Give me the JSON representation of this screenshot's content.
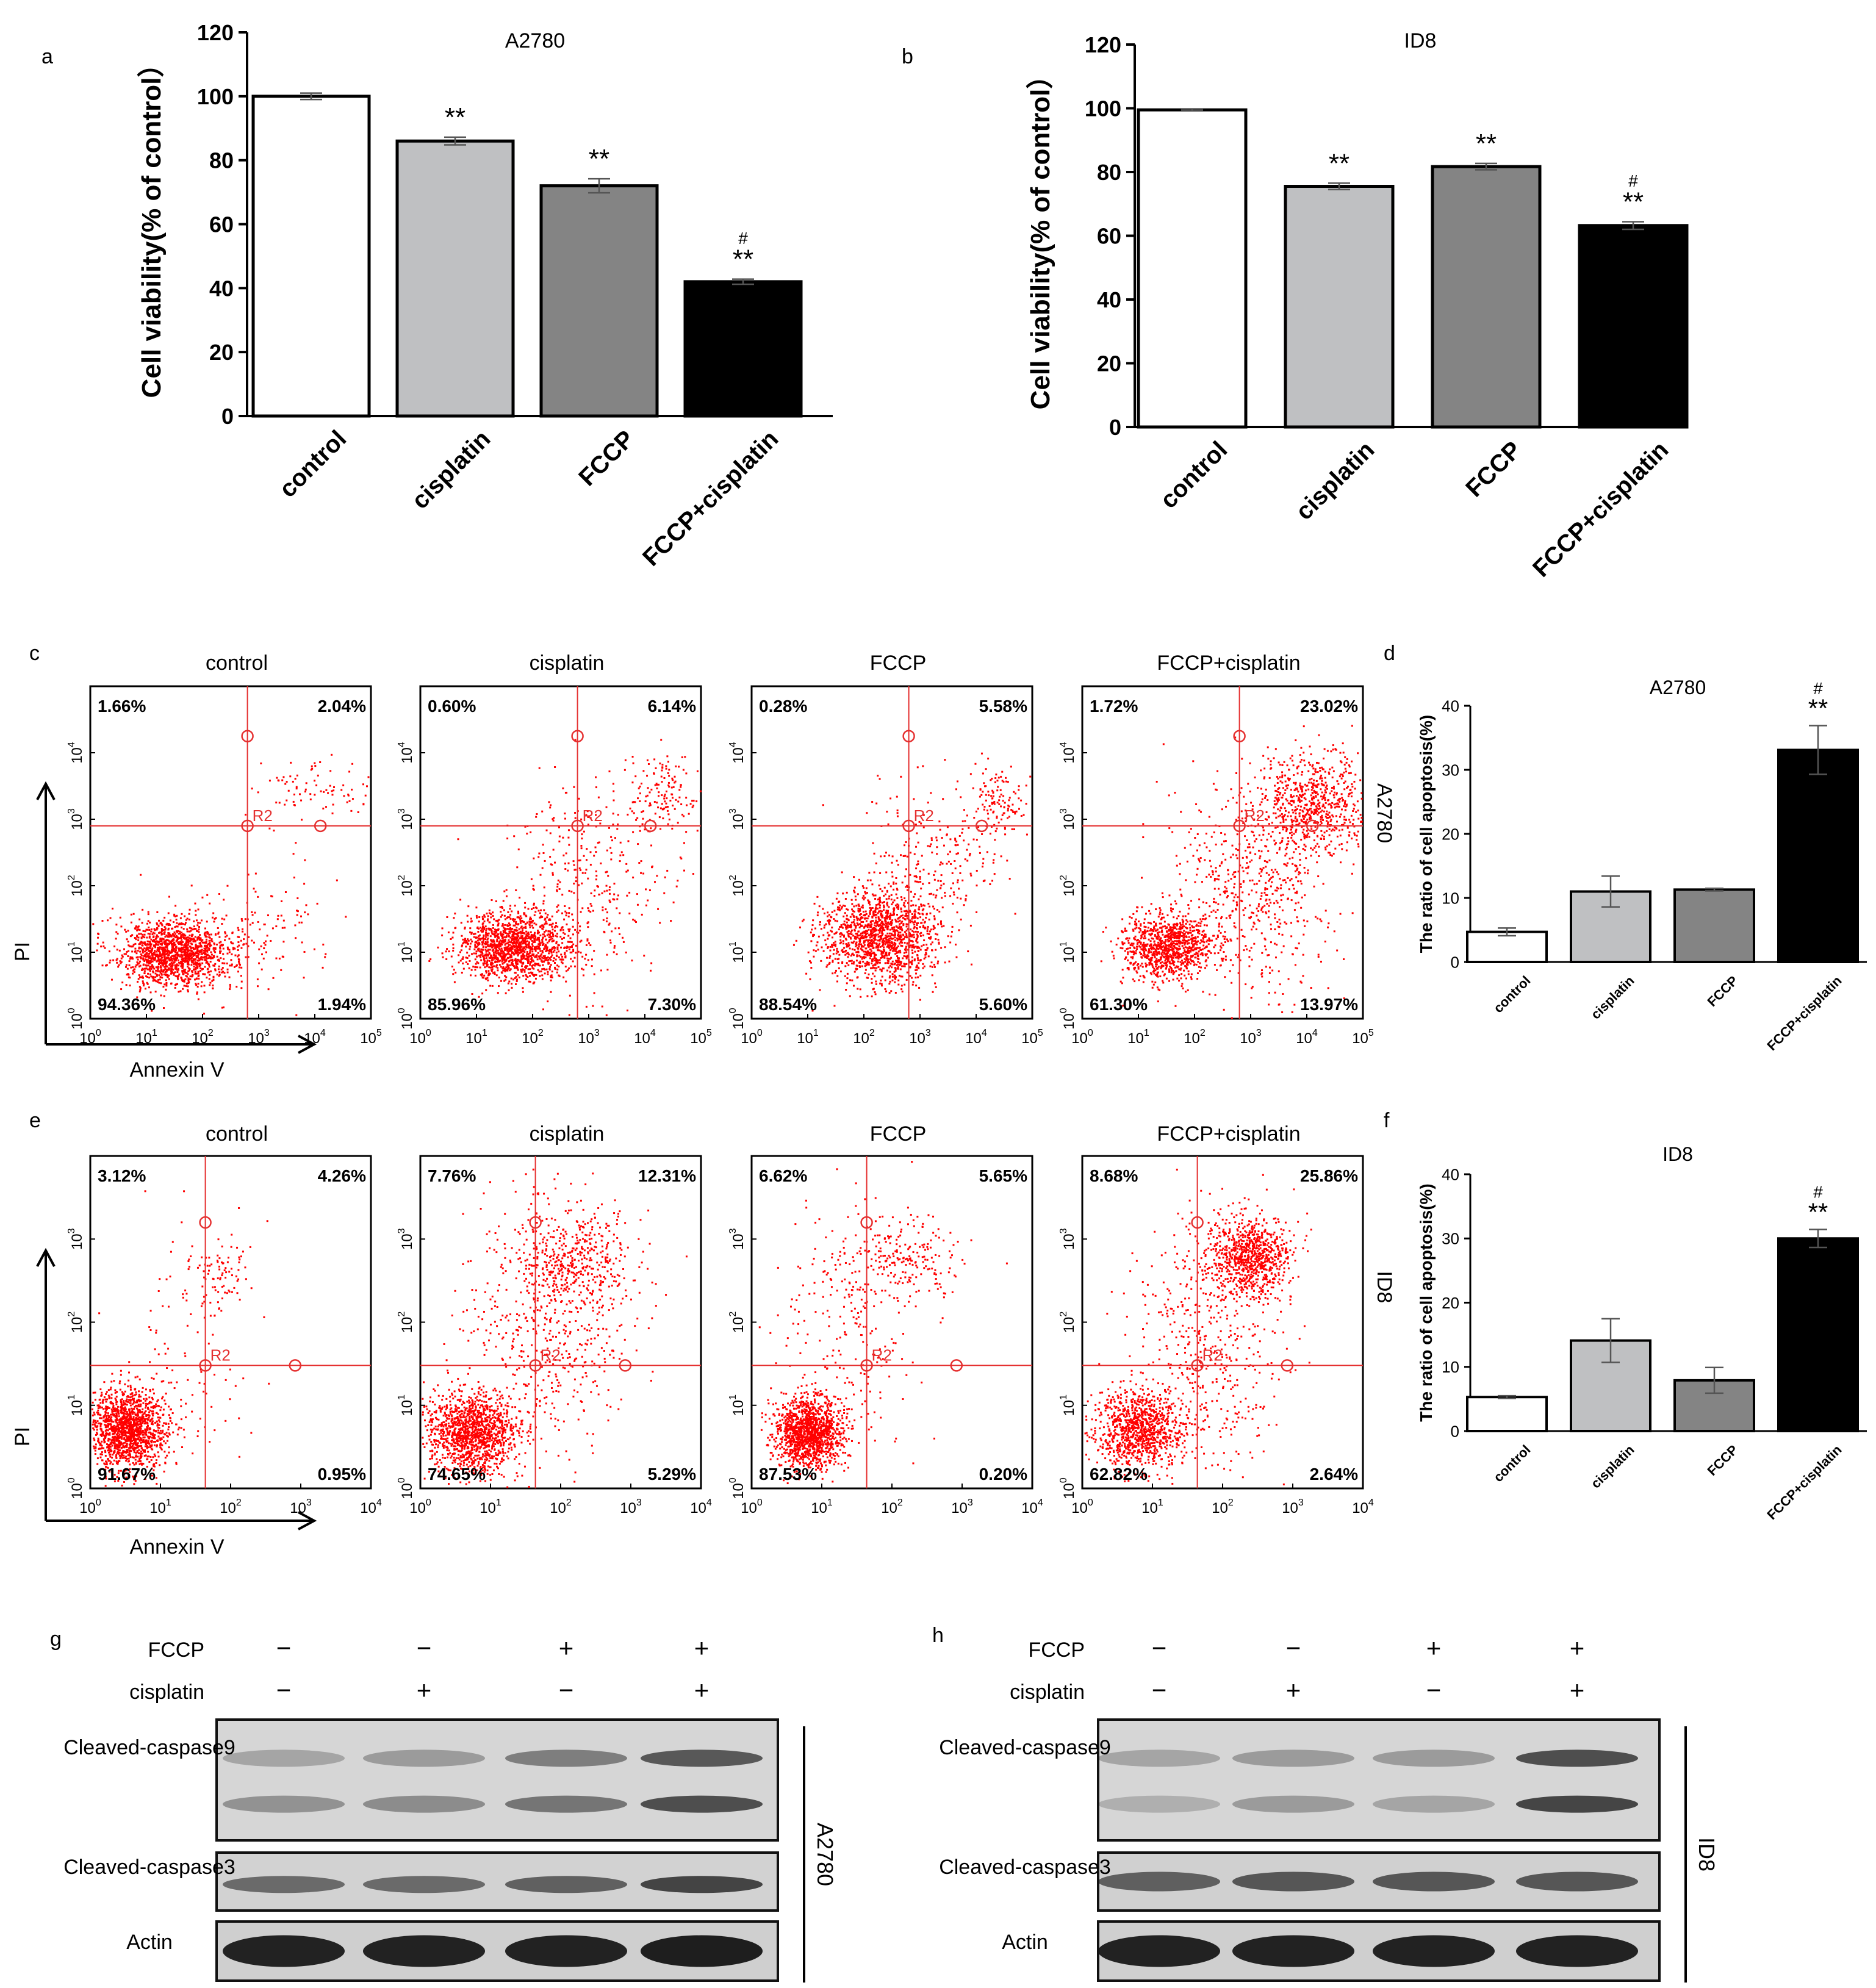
{
  "colors": {
    "bar_white": "#ffffff",
    "bar_light": "#bfc0c2",
    "bar_mid": "#848484",
    "bar_black": "#000000",
    "flow_dot": "#ff0000",
    "gate_line": "#e53030"
  },
  "chart_data": [
    {
      "panel": "a",
      "type": "bar",
      "title": "A2780",
      "ylabel": "Cell viability(% of control）",
      "categories": [
        "control",
        "cisplatin",
        "FCCP",
        "FCCP+cisplatin"
      ],
      "values": [
        100,
        86,
        72,
        42
      ],
      "errors": [
        1,
        1.2,
        2.2,
        0.8
      ],
      "annotations": [
        "",
        "**",
        "**",
        "**"
      ],
      "hash": [
        "",
        "",
        "",
        "#"
      ],
      "ylim": [
        0,
        120
      ],
      "yticks": [
        "0",
        "20",
        "40",
        "60",
        "80",
        "100",
        "120"
      ]
    },
    {
      "panel": "b",
      "type": "bar",
      "title": "ID8",
      "ylabel": "Cell viability(% of control）",
      "categories": [
        "control",
        "cisplatin",
        "FCCP",
        "FCCP+cisplatin"
      ],
      "values": [
        99.5,
        75.5,
        81.7,
        63.2
      ],
      "errors": [
        0.3,
        1,
        1,
        1.2
      ],
      "annotations": [
        "",
        "**",
        "**",
        "**"
      ],
      "hash": [
        "",
        "",
        "",
        "#"
      ],
      "ylim": [
        0,
        120
      ],
      "yticks": [
        "0",
        "20",
        "40",
        "60",
        "80",
        "100",
        "120"
      ]
    },
    {
      "panel": "d",
      "type": "bar",
      "title": "A2780",
      "ylabel": "The ratio of cell apoptosis(%)",
      "categories": [
        "control",
        "cisplatin",
        "FCCP",
        "FCCP+cisplatin"
      ],
      "values": [
        4.7,
        11,
        11.3,
        33.1
      ],
      "errors": [
        0.6,
        2.4,
        0.2,
        3.8
      ],
      "annotations": [
        "",
        "",
        "",
        "**"
      ],
      "hash": [
        "",
        "",
        "",
        "#"
      ],
      "ylim": [
        0,
        40
      ],
      "yticks": [
        "0",
        "10",
        "20",
        "30",
        "40"
      ]
    },
    {
      "panel": "f",
      "type": "bar",
      "title": "ID8",
      "ylabel": "The ratio of cell apoptosis(%)",
      "categories": [
        "control",
        "cisplatin",
        "FCCP",
        "FCCP+cisplatin"
      ],
      "values": [
        5.3,
        14.1,
        7.9,
        30
      ],
      "errors": [
        0.2,
        3.4,
        2,
        1.4
      ],
      "annotations": [
        "",
        "",
        "",
        "**"
      ],
      "hash": [
        "",
        "",
        "",
        "#"
      ],
      "ylim": [
        0,
        40
      ],
      "yticks": [
        "0",
        "10",
        "20",
        "30",
        "40"
      ]
    },
    {
      "panel": "c",
      "type": "scatter",
      "ylabel": "PI",
      "xlabel": "Annexin V",
      "side_label": "A2780",
      "gate_label": "R2",
      "x_decades": 5,
      "y_decades": 5,
      "plots": [
        {
          "title": "control",
          "quadrants": [
            "1.66%",
            "2.04%",
            "94.36%",
            "1.94%"
          ]
        },
        {
          "title": "cisplatin",
          "quadrants": [
            "0.60%",
            "6.14%",
            "85.96%",
            "7.30%"
          ]
        },
        {
          "title": "FCCP",
          "quadrants": [
            "0.28%",
            "5.58%",
            "88.54%",
            "5.60%"
          ]
        },
        {
          "title": "FCCP+cisplatin",
          "quadrants": [
            "1.72%",
            "23.02%",
            "61.30%",
            "13.97%"
          ]
        }
      ]
    },
    {
      "panel": "e",
      "type": "scatter",
      "ylabel": "PI",
      "xlabel": "Annexin V",
      "side_label": "ID8",
      "gate_label": "R2",
      "x_decades": 4,
      "y_decades": 4,
      "plots": [
        {
          "title": "control",
          "quadrants": [
            "3.12%",
            "4.26%",
            "91.67%",
            "0.95%"
          ]
        },
        {
          "title": "cisplatin",
          "quadrants": [
            "7.76%",
            "12.31%",
            "74.65%",
            "5.29%"
          ]
        },
        {
          "title": "FCCP",
          "quadrants": [
            "6.62%",
            "5.65%",
            "87.53%",
            "0.20%"
          ]
        },
        {
          "title": "FCCP+cisplatin",
          "quadrants": [
            "8.68%",
            "25.86%",
            "62.82%",
            "2.64%"
          ]
        }
      ]
    }
  ],
  "panel_labels": [
    "a",
    "b",
    "c",
    "d",
    "e",
    "f",
    "g",
    "h"
  ],
  "western_blots": [
    {
      "panel": "g",
      "cell_line": "A2780",
      "fccp_label": "FCCP",
      "cisplatin_label": "cisplatin",
      "fccp": [
        "−",
        "−",
        "+",
        "+"
      ],
      "cisplatin": [
        "−",
        "+",
        "−",
        "+"
      ],
      "rows": [
        "Cleaved-caspase9",
        "Cleaved-caspase3",
        "Actin"
      ]
    },
    {
      "panel": "h",
      "cell_line": "ID8",
      "fccp_label": "FCCP",
      "cisplatin_label": "cisplatin",
      "fccp": [
        "−",
        "−",
        "+",
        "+"
      ],
      "cisplatin": [
        "−",
        "+",
        "−",
        "+"
      ],
      "rows": [
        "Cleaved-caspase9",
        "Cleaved-caspase3",
        "Actin"
      ]
    }
  ]
}
